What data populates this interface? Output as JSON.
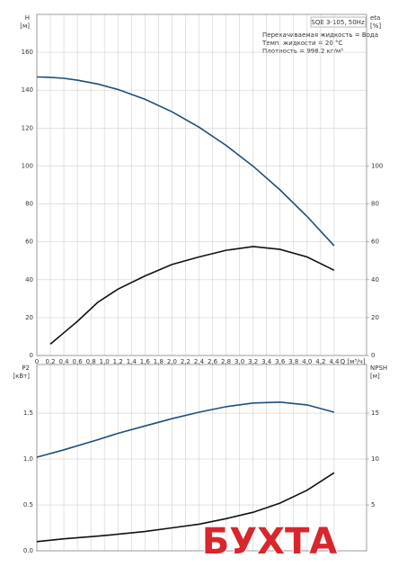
{
  "chart_data": [
    {
      "type": "line",
      "title": "SQE 3-105, 50Hz",
      "annotations": [
        "Перекачиваемая жидкость = Вода",
        "Темп. жидкости = 20 °C",
        "Плотность = 998.2 кг/м³"
      ],
      "ylabel": [
        "H",
        "[м]"
      ],
      "y2label": [
        "eta",
        "[%]"
      ],
      "xlabel": "Q [м³/ч]",
      "x": [
        0,
        0.2,
        0.4,
        0.6,
        0.9,
        1.2,
        1.6,
        2.0,
        2.4,
        2.8,
        3.2,
        3.6,
        4.0,
        4.4
      ],
      "series": [
        {
          "name": "H",
          "color": "#1f4e79",
          "values": [
            147,
            146.8,
            146.3,
            145.3,
            143.3,
            140.4,
            135.2,
            128.6,
            120.5,
            110.9,
            99.9,
            87.4,
            73.4,
            57.9
          ]
        },
        {
          "name": "eta",
          "color": "#111111",
          "axis": "y2",
          "values": [
            null,
            6,
            12,
            18,
            28,
            35,
            42,
            48,
            52,
            55.5,
            57.5,
            56,
            52,
            45
          ]
        }
      ],
      "xlim": [
        0,
        4.88
      ],
      "xticks": [
        0,
        {
          "value": 0.2,
          "label": "0,2"
        },
        {
          "value": 0.4,
          "label": "0,4"
        },
        {
          "value": 0.6,
          "label": "0,6"
        },
        {
          "value": 0.8,
          "label": "0,8"
        },
        {
          "value": 1.0,
          "label": "1,0"
        },
        {
          "value": 1.2,
          "label": "1,2"
        },
        {
          "value": 1.4,
          "label": "1,4"
        },
        {
          "value": 1.6,
          "label": "1,6"
        },
        {
          "value": 1.8,
          "label": "1,8"
        },
        {
          "value": 2.0,
          "label": "2,0"
        },
        {
          "value": 2.2,
          "label": "2,2"
        },
        {
          "value": 2.4,
          "label": "2,4"
        },
        {
          "value": 2.6,
          "label": "2,6"
        },
        {
          "value": 2.8,
          "label": "2,8"
        },
        {
          "value": 3.0,
          "label": "3,0"
        },
        {
          "value": 3.2,
          "label": "3,2"
        },
        {
          "value": 3.4,
          "label": "3,4"
        },
        {
          "value": 3.6,
          "label": "3,6"
        },
        {
          "value": 3.8,
          "label": "3,8"
        },
        {
          "value": 4.0,
          "label": "4,0"
        },
        {
          "value": 4.2,
          "label": "4,2"
        },
        {
          "value": 4.4,
          "label": "4,4"
        }
      ],
      "ylim": [
        0,
        180
      ],
      "yticks": [
        0,
        20,
        40,
        60,
        80,
        100,
        120,
        140,
        160
      ],
      "y2lim": [
        0,
        180
      ],
      "y2ticks": [
        0,
        20,
        40,
        60,
        80,
        100
      ],
      "grid": true
    },
    {
      "type": "line",
      "ylabel": [
        "P2",
        "[кВт]"
      ],
      "y2label": [
        "NPSH",
        "[м]"
      ],
      "x": [
        0,
        0.4,
        0.9,
        1.2,
        1.6,
        2.0,
        2.4,
        2.8,
        3.2,
        3.6,
        4.0,
        4.4
      ],
      "series": [
        {
          "name": "P2",
          "color": "#1f4e79",
          "values": [
            1.02,
            1.1,
            1.21,
            1.28,
            1.36,
            1.44,
            1.51,
            1.57,
            1.61,
            1.62,
            1.59,
            1.51
          ]
        },
        {
          "name": "NPSH",
          "color": "#111111",
          "axis": "y2",
          "values": [
            1.0,
            1.3,
            1.6,
            1.8,
            2.1,
            2.5,
            2.9,
            3.5,
            4.2,
            5.2,
            6.6,
            8.5
          ]
        }
      ],
      "xlim": [
        0,
        4.88
      ],
      "ylim": [
        0,
        2.03
      ],
      "yticks": [
        {
          "value": 0,
          "label": "0.0"
        },
        0.5,
        {
          "value": 1,
          "label": "1.0"
        },
        1.5
      ],
      "y2lim": [
        0,
        20.3
      ],
      "y2ticks": [
        5,
        10,
        15
      ],
      "grid": true
    }
  ],
  "watermark": "БУХТА"
}
